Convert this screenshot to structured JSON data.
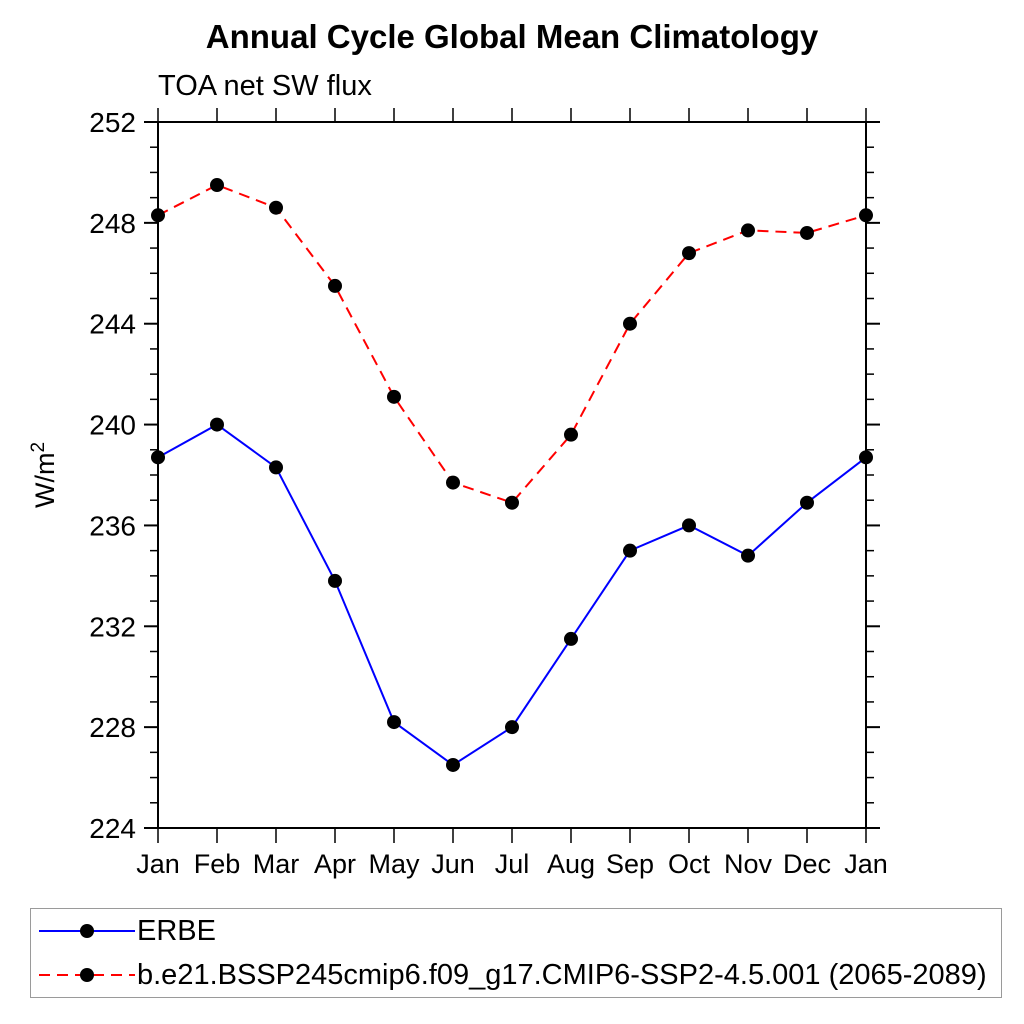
{
  "title": "Annual Cycle Global Mean Climatology",
  "subtitle": "TOA net SW flux",
  "colors": {
    "erbe_line": "#0000ff",
    "model_line": "#ff0000",
    "marker": "#000000",
    "axis": "#000000",
    "legend_border": "#9a9a9a"
  },
  "chart_data": {
    "type": "line",
    "title": "Annual Cycle Global Mean Climatology",
    "subtitle": "TOA net SW flux",
    "ylabel_base": "W/m",
    "ylabel_exponent": "2",
    "categories": [
      "Jan",
      "Feb",
      "Mar",
      "Apr",
      "May",
      "Jun",
      "Jul",
      "Aug",
      "Sep",
      "Oct",
      "Nov",
      "Dec",
      "Jan"
    ],
    "series": [
      {
        "name": "ERBE",
        "slug": "erbe",
        "color": "#0000ff",
        "line_style": "solid",
        "marker": "filled-circle",
        "marker_color": "#000000",
        "values": [
          238.7,
          240.0,
          238.3,
          233.8,
          228.2,
          226.5,
          228.0,
          231.5,
          235.0,
          236.0,
          234.8,
          236.9,
          238.7
        ]
      },
      {
        "name": "b.e21.BSSP245cmip6.f09_g17.CMIP6-SSP2-4.5.001 (2065-2089)",
        "slug": "model",
        "color": "#ff0000",
        "line_style": "dashed",
        "marker": "filled-circle",
        "marker_color": "#000000",
        "values": [
          248.3,
          249.5,
          248.6,
          245.5,
          241.1,
          237.7,
          236.9,
          239.6,
          244.0,
          246.8,
          247.7,
          247.6,
          248.3
        ]
      }
    ],
    "ylim": [
      224,
      252
    ],
    "ytick_major_step": 4,
    "ytick_minor_step": 1,
    "ytick_labels": [
      "224",
      "228",
      "232",
      "236",
      "240",
      "244",
      "248",
      "252"
    ],
    "grid": false,
    "legend_position": "bottom"
  }
}
